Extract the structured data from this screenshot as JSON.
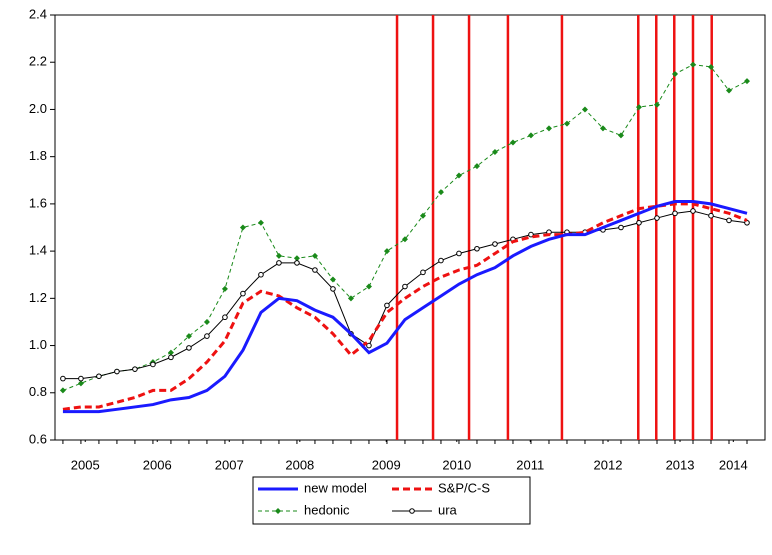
{
  "chart_data": {
    "type": "line",
    "x": [
      2005,
      2005.25,
      2005.5,
      2005.75,
      2006,
      2006.25,
      2006.5,
      2006.75,
      2007,
      2007.25,
      2007.5,
      2007.75,
      2008,
      2008.25,
      2008.5,
      2008.75,
      2009,
      2009.25,
      2009.5,
      2009.75,
      2010,
      2010.25,
      2010.5,
      2010.75,
      2011,
      2011.25,
      2011.5,
      2011.75,
      2012,
      2012.25,
      2012.5,
      2012.75,
      2013,
      2013.25,
      2013.5,
      2013.75,
      2014,
      2014.25,
      2014.5
    ],
    "xlim": [
      2004.89,
      2014.75
    ],
    "xticks": [
      {
        "value": 2005.31,
        "label": "2005"
      },
      {
        "value": 2006.31,
        "label": "2006"
      },
      {
        "value": 2007.31,
        "label": "2007"
      },
      {
        "value": 2008.29,
        "label": "2008"
      },
      {
        "value": 2009.49,
        "label": "2009"
      },
      {
        "value": 2010.47,
        "label": "2010"
      },
      {
        "value": 2011.49,
        "label": "2011"
      },
      {
        "value": 2012.57,
        "label": "2012"
      },
      {
        "value": 2013.57,
        "label": "2013"
      },
      {
        "value": 2014.31,
        "label": "2014"
      }
    ],
    "ylim": [
      0.6,
      2.4
    ],
    "yticks": [
      0.6,
      0.8,
      {
        "value": 1,
        "label": "1.0"
      },
      1.2,
      1.4,
      1.6,
      1.8,
      {
        "value": 2,
        "label": "2.0"
      },
      2.2,
      2.4
    ],
    "vlines": {
      "color": "#ee1111",
      "x": [
        2009.64,
        2010.14,
        2010.64,
        2011.18,
        2011.93,
        2012.99,
        2013.24,
        2013.49,
        2013.75,
        2014.01
      ]
    },
    "series": [
      {
        "name": "new model",
        "color": "#1a1aff",
        "style": "solid",
        "marker": "none",
        "values": [
          0.72,
          0.72,
          0.72,
          0.73,
          0.74,
          0.75,
          0.77,
          0.78,
          0.81,
          0.87,
          0.98,
          1.14,
          1.2,
          1.19,
          1.15,
          1.12,
          1.05,
          0.97,
          1.01,
          1.11,
          1.16,
          1.21,
          1.26,
          1.3,
          1.33,
          1.38,
          1.42,
          1.45,
          1.47,
          1.47,
          1.5,
          1.53,
          1.56,
          1.59,
          1.61,
          1.61,
          1.6,
          1.58,
          1.56
        ]
      },
      {
        "name": "S&P/C-S",
        "color": "#ee1111",
        "style": "dashed",
        "marker": "none",
        "values": [
          0.73,
          0.74,
          0.74,
          0.76,
          0.78,
          0.81,
          0.81,
          0.86,
          0.93,
          1.02,
          1.18,
          1.23,
          1.21,
          1.16,
          1.12,
          1.05,
          0.96,
          1.02,
          1.14,
          1.2,
          1.25,
          1.29,
          1.32,
          1.34,
          1.39,
          1.44,
          1.46,
          1.47,
          1.47,
          1.48,
          1.52,
          1.55,
          1.58,
          1.59,
          1.6,
          1.6,
          1.58,
          1.56,
          1.53
        ]
      },
      {
        "name": "hedonic",
        "color": "#1a8a1a",
        "style": "thin-dashed",
        "marker": "diamond",
        "values": [
          0.81,
          0.84,
          0.87,
          0.89,
          0.9,
          0.93,
          0.97,
          1.04,
          1.1,
          1.24,
          1.5,
          1.52,
          1.38,
          1.37,
          1.38,
          1.28,
          1.2,
          1.25,
          1.4,
          1.45,
          1.55,
          1.65,
          1.72,
          1.76,
          1.82,
          1.86,
          1.89,
          1.92,
          1.94,
          2.0,
          1.92,
          1.89,
          2.01,
          2.02,
          2.15,
          2.19,
          2.18,
          2.08,
          2.12
        ]
      },
      {
        "name": "ura",
        "color": "#000000",
        "style": "thin",
        "marker": "circle",
        "values": [
          0.86,
          0.86,
          0.87,
          0.89,
          0.9,
          0.92,
          0.95,
          0.99,
          1.04,
          1.12,
          1.22,
          1.3,
          1.35,
          1.35,
          1.32,
          1.24,
          1.05,
          1.0,
          1.17,
          1.25,
          1.31,
          1.36,
          1.39,
          1.41,
          1.43,
          1.45,
          1.47,
          1.48,
          1.48,
          1.48,
          1.49,
          1.5,
          1.52,
          1.54,
          1.56,
          1.57,
          1.55,
          1.53,
          1.52
        ]
      }
    ]
  }
}
